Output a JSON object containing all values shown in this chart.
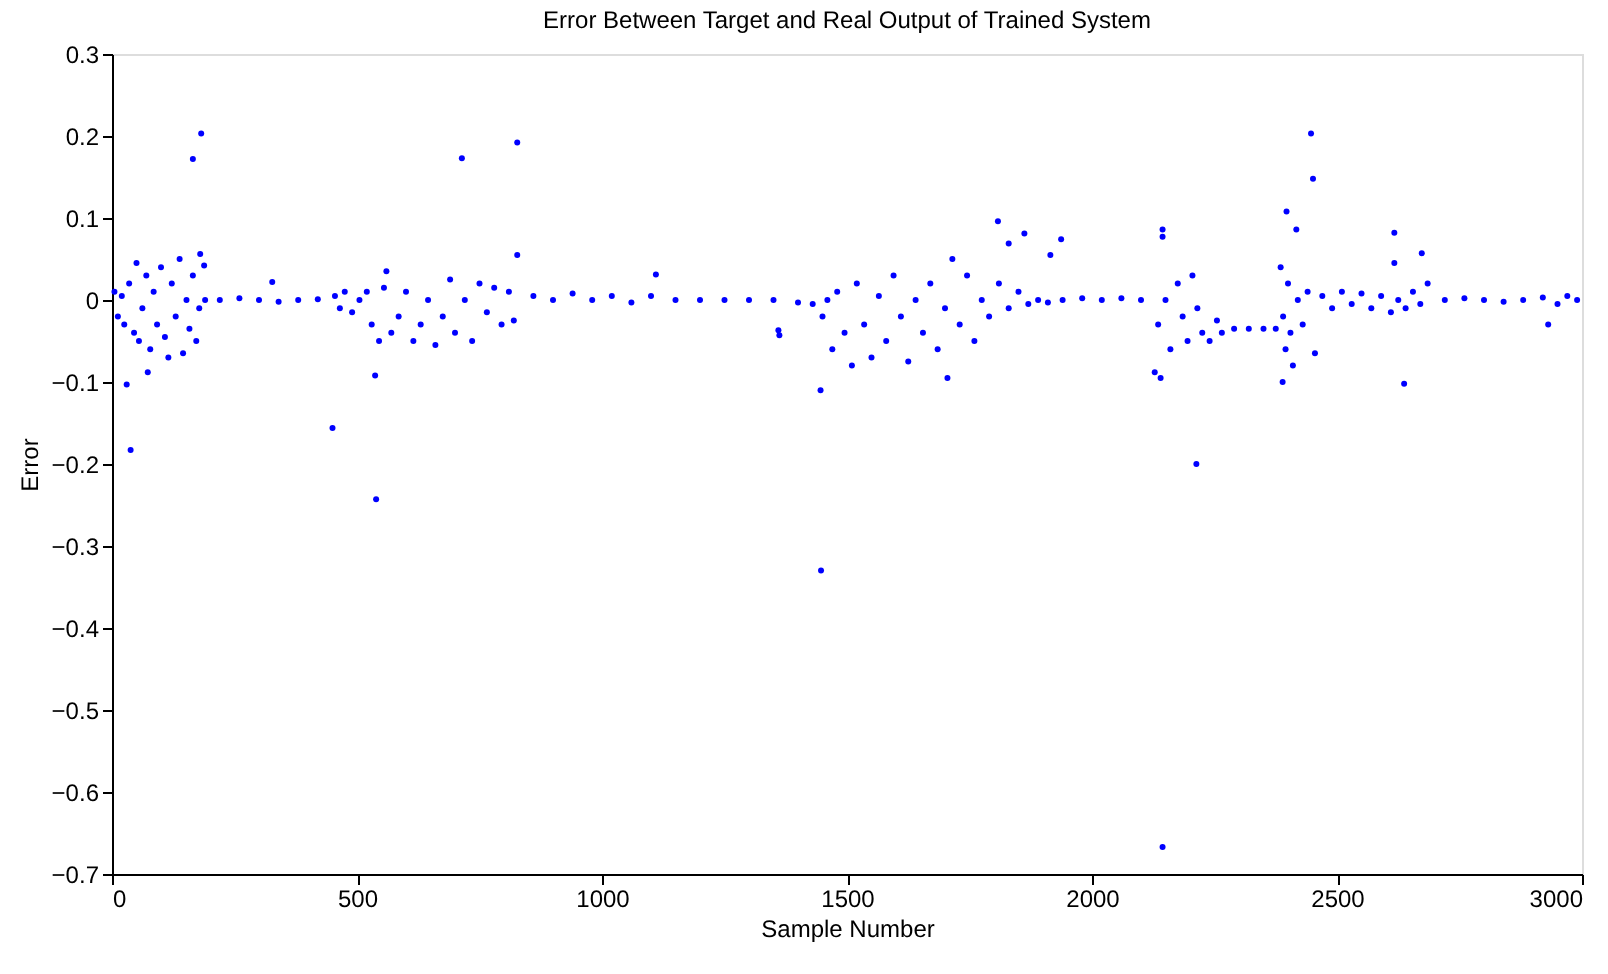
{
  "chart_data": {
    "type": "scatter",
    "title": "Error Between Target and Real Output of Trained System",
    "xlabel": "Sample Number",
    "ylabel": "Error",
    "xlim": [
      0,
      3000
    ],
    "xticks": [
      0,
      500,
      1000,
      1500,
      2000,
      2500,
      3000
    ],
    "ylim": [
      -0.7,
      0.3
    ],
    "yticks": [
      -0.7,
      -0.6,
      -0.5,
      -0.4,
      -0.3,
      -0.2,
      -0.1,
      0,
      0.1,
      0.2,
      0.3
    ],
    "grid": false,
    "marker": "circle",
    "series": [
      {
        "color": "#0000ff",
        "x": [
          5,
          12,
          20,
          25,
          35,
          45,
          50,
          55,
          62,
          70,
          78,
          85,
          92,
          100,
          108,
          115,
          122,
          130,
          138,
          145,
          152,
          158,
          165,
          172,
          178,
          190,
          220,
          260,
          300,
          340,
          380,
          420,
          455,
          465,
          475,
          490,
          505,
          520,
          530,
          545,
          555,
          560,
          570,
          585,
          600,
          615,
          630,
          645,
          660,
          675,
          690,
          700,
          720,
          735,
          750,
          765,
          780,
          795,
          810,
          820,
          860,
          900,
          940,
          980,
          1020,
          1060,
          1100,
          1150,
          1200,
          1250,
          1300,
          1350,
          1400,
          1430,
          1450,
          1460,
          1470,
          1480,
          1495,
          1510,
          1520,
          1535,
          1550,
          1565,
          1580,
          1595,
          1610,
          1625,
          1640,
          1655,
          1670,
          1685,
          1700,
          1705,
          1715,
          1730,
          1745,
          1760,
          1775,
          1790,
          1810,
          1830,
          1850,
          1870,
          1890,
          1910,
          1940,
          1980,
          2020,
          2060,
          2100,
          2135,
          2150,
          2160,
          2175,
          2185,
          2195,
          2205,
          2215,
          2225,
          2240,
          2255,
          2265,
          2290,
          2320,
          2350,
          2375,
          2385,
          2390,
          2395,
          2400,
          2405,
          2410,
          2420,
          2430,
          2440,
          2455,
          2470,
          2490,
          2510,
          2530,
          2550,
          2570,
          2590,
          2610,
          2625,
          2640,
          2655,
          2670,
          2685,
          2720,
          2760,
          2800,
          2840,
          2880,
          2920,
          2950,
          2970,
          2990,
          30,
          38,
          73,
          165,
          182,
          188,
          180,
          327,
          450,
          537,
          539,
          714,
          827,
          827,
          1110,
          1360,
          1362,
          1446,
          1447,
          1808,
          1830,
          1862,
          1915,
          1937,
          2144,
          2144,
          2144,
          2213,
          2128,
          2140,
          2397,
          2417,
          2447,
          2451,
          2389,
          2637,
          2617,
          2617,
          2673,
          2931
        ],
        "values": [
          0.01,
          -0.02,
          0.005,
          -0.03,
          0.02,
          -0.04,
          0.045,
          -0.05,
          -0.01,
          0.03,
          -0.06,
          0.01,
          -0.03,
          0.04,
          -0.045,
          -0.07,
          0.02,
          -0.02,
          0.05,
          -0.065,
          0.0,
          -0.035,
          0.03,
          -0.05,
          -0.01,
          0.0,
          0,
          0.002,
          0,
          -0.002,
          0,
          0.001,
          0.005,
          -0.01,
          0.01,
          -0.015,
          0.0,
          0.01,
          -0.03,
          -0.05,
          0.015,
          0.035,
          -0.04,
          -0.02,
          0.01,
          -0.05,
          -0.03,
          0.0,
          -0.055,
          -0.02,
          0.025,
          -0.04,
          0.0,
          -0.05,
          0.02,
          -0.015,
          0.015,
          -0.03,
          0.01,
          -0.025,
          0.005,
          0,
          0.008,
          0,
          0.005,
          -0.003,
          0.005,
          0,
          0,
          0,
          0,
          0,
          -0.003,
          -0.005,
          -0.02,
          0.0,
          -0.06,
          0.01,
          -0.04,
          -0.08,
          0.02,
          -0.03,
          -0.07,
          0.005,
          -0.05,
          0.03,
          -0.02,
          -0.075,
          0.0,
          -0.04,
          0.02,
          -0.06,
          -0.01,
          -0.095,
          0.05,
          -0.03,
          0.03,
          -0.05,
          0.0,
          -0.02,
          0.02,
          -0.01,
          0.01,
          -0.005,
          0.0,
          -0.003,
          0.0,
          0.002,
          0,
          0.002,
          0,
          -0.03,
          0.0,
          -0.06,
          0.02,
          -0.02,
          -0.05,
          0.03,
          -0.01,
          -0.04,
          -0.05,
          -0.025,
          -0.04,
          -0.035,
          -0.035,
          -0.035,
          -0.035,
          0.04,
          -0.02,
          -0.06,
          0.02,
          -0.04,
          -0.08,
          0.0,
          -0.03,
          0.01,
          -0.065,
          0.005,
          -0.01,
          0.01,
          -0.005,
          0.008,
          -0.01,
          0.005,
          -0.015,
          0.0,
          -0.01,
          0.01,
          -0.005,
          0.02,
          0,
          0.002,
          0,
          -0.002,
          0,
          0.003,
          -0.005,
          0.005,
          0,
          -0.103,
          -0.183,
          -0.088,
          0.172,
          0.203,
          0.042,
          0.056,
          0.022,
          -0.156,
          -0.092,
          -0.243,
          0.173,
          0.192,
          0.055,
          0.031,
          -0.037,
          -0.043,
          -0.11,
          -0.33,
          0.096,
          0.069,
          0.081,
          0.055,
          0.074,
          0.086,
          0.077,
          -0.667,
          -0.2,
          -0.088,
          -0.095,
          0.108,
          0.086,
          0.203,
          0.148,
          -0.1,
          -0.102,
          0.082,
          0.045,
          0.057,
          -0.03
        ]
      }
    ]
  }
}
